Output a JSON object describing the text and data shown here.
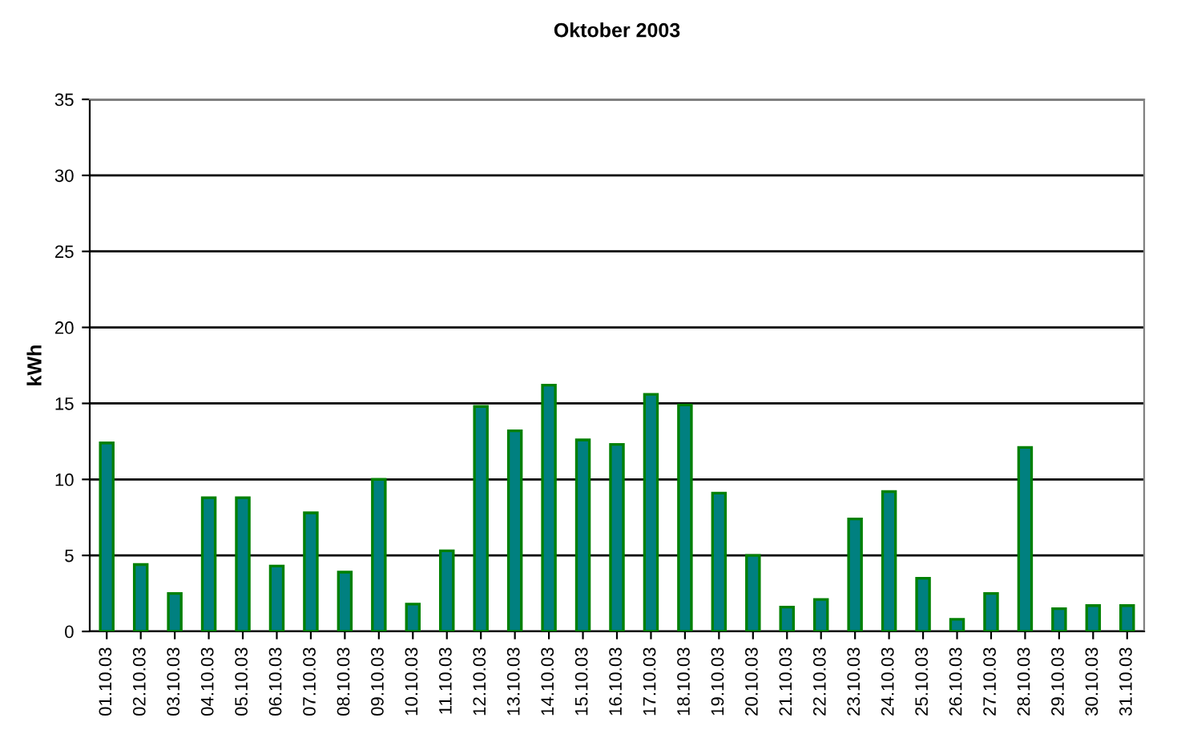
{
  "chart_data": {
    "type": "bar",
    "title": "Oktober 2003",
    "ylabel": "kWh",
    "categories": [
      "01.10.03",
      "02.10.03",
      "03.10.03",
      "04.10.03",
      "05.10.03",
      "06.10.03",
      "07.10.03",
      "08.10.03",
      "09.10.03",
      "10.10.03",
      "11.10.03",
      "12.10.03",
      "13.10.03",
      "14.10.03",
      "15.10.03",
      "16.10.03",
      "17.10.03",
      "18.10.03",
      "19.10.03",
      "20.10.03",
      "21.10.03",
      "22.10.03",
      "23.10.03",
      "24.10.03",
      "25.10.03",
      "26.10.03",
      "27.10.03",
      "28.10.03",
      "29.10.03",
      "30.10.03",
      "31.10.03"
    ],
    "values": [
      12.4,
      4.4,
      2.5,
      8.8,
      8.8,
      4.3,
      7.8,
      3.9,
      10.0,
      1.8,
      5.3,
      14.8,
      13.2,
      16.2,
      12.6,
      12.3,
      15.6,
      14.9,
      9.1,
      5.0,
      1.6,
      2.1,
      7.4,
      9.2,
      3.5,
      0.8,
      2.5,
      12.1,
      1.5,
      1.7,
      1.7
    ],
    "color": "#008080",
    "ylim": [
      0,
      35
    ],
    "yticks": [
      0,
      5,
      10,
      15,
      20,
      25,
      30,
      35
    ],
    "grid": "y",
    "legend": false
  }
}
